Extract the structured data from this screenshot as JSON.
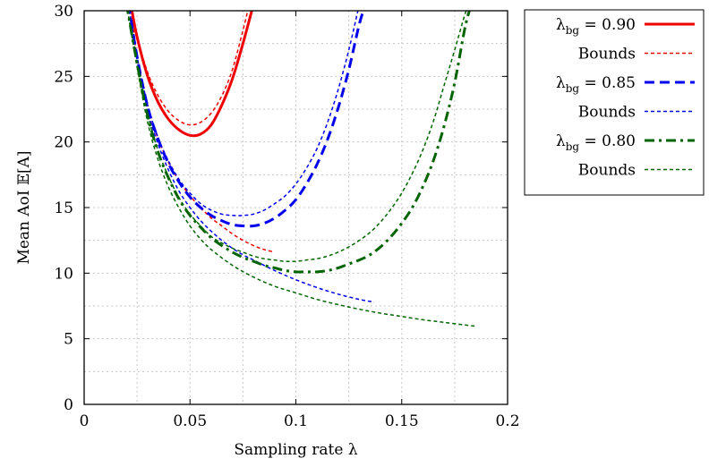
{
  "chart_data": {
    "type": "line",
    "xlabel": "Sampling rate λ",
    "ylabel": "Mean AoI 𝔼[A]",
    "xlim": [
      0,
      0.2
    ],
    "ylim": [
      0,
      30
    ],
    "xticks": [
      "0",
      "0.05",
      "0.1",
      "0.15",
      "0.2"
    ],
    "yticks": [
      "0",
      "5",
      "10",
      "15",
      "20",
      "25",
      "30"
    ],
    "grid": true,
    "legend_position": "outside-right",
    "series": [
      {
        "name": "λbg = 0.90",
        "legend": {
          "prefix": "λ",
          "sub": "bg",
          "suffix": " = 0.90"
        },
        "color": "#ee0000",
        "style": "solid",
        "x": [
          0.022,
          0.025,
          0.03,
          0.035,
          0.04,
          0.045,
          0.05,
          0.055,
          0.06,
          0.065,
          0.07,
          0.075,
          0.08
        ],
        "y": [
          30.5,
          28.0,
          25.0,
          23.0,
          21.7,
          20.9,
          20.5,
          20.6,
          21.3,
          22.8,
          24.8,
          27.5,
          30.5
        ]
      },
      {
        "name": "Bounds",
        "legend": {
          "prefix": "",
          "sub": "",
          "suffix": "Bounds"
        },
        "color": "#ee0000",
        "style": "dashed-fine",
        "x": [
          0.022,
          0.025,
          0.03,
          0.035,
          0.04,
          0.045,
          0.05,
          0.055,
          0.06,
          0.065,
          0.07,
          0.075,
          0.078
        ],
        "y": [
          30.5,
          28.0,
          25.3,
          23.5,
          22.3,
          21.6,
          21.3,
          21.5,
          22.2,
          23.5,
          25.5,
          28.5,
          30.5
        ]
      },
      {
        "name": "Bounds (lower)",
        "color": "#ee0000",
        "style": "dashed-fine",
        "x": [
          0.022,
          0.025,
          0.03,
          0.035,
          0.04,
          0.045,
          0.05,
          0.055,
          0.06,
          0.065,
          0.07,
          0.075,
          0.08,
          0.085,
          0.09
        ],
        "y": [
          30.5,
          26.5,
          22.8,
          20.2,
          18.4,
          17.0,
          15.9,
          15.0,
          14.2,
          13.6,
          13.0,
          12.5,
          12.1,
          11.8,
          11.6
        ]
      },
      {
        "name": "λbg = 0.85",
        "legend": {
          "prefix": "λ",
          "sub": "bg",
          "suffix": " = 0.85"
        },
        "color": "#0000ee",
        "style": "dashed",
        "x": [
          0.021,
          0.025,
          0.03,
          0.035,
          0.04,
          0.045,
          0.05,
          0.055,
          0.06,
          0.065,
          0.07,
          0.075,
          0.08,
          0.085,
          0.09,
          0.095,
          0.1,
          0.105,
          0.11,
          0.115,
          0.12,
          0.125,
          0.13,
          0.133
        ],
        "y": [
          30.5,
          26.5,
          22.7,
          20.2,
          18.3,
          16.9,
          15.8,
          15.0,
          14.4,
          14.0,
          13.7,
          13.6,
          13.6,
          13.8,
          14.2,
          14.8,
          15.6,
          16.8,
          18.3,
          20.2,
          22.6,
          25.5,
          29.0,
          30.5
        ]
      },
      {
        "name": "Bounds",
        "legend": {
          "prefix": "",
          "sub": "",
          "suffix": "Bounds"
        },
        "color": "#0000ee",
        "style": "dashed-fine",
        "x": [
          0.021,
          0.025,
          0.03,
          0.035,
          0.04,
          0.045,
          0.05,
          0.055,
          0.06,
          0.065,
          0.07,
          0.075,
          0.08,
          0.085,
          0.09,
          0.095,
          0.1,
          0.105,
          0.11,
          0.115,
          0.12,
          0.125,
          0.13
        ],
        "y": [
          30.5,
          26.5,
          22.8,
          20.3,
          18.5,
          17.1,
          16.1,
          15.3,
          14.8,
          14.5,
          14.4,
          14.4,
          14.5,
          14.8,
          15.3,
          15.9,
          16.8,
          18.0,
          19.5,
          21.5,
          24.0,
          27.0,
          30.5
        ]
      },
      {
        "name": "Bounds (lower)",
        "color": "#0000ee",
        "style": "dashed-fine",
        "x": [
          0.021,
          0.025,
          0.03,
          0.035,
          0.04,
          0.045,
          0.05,
          0.055,
          0.06,
          0.065,
          0.07,
          0.075,
          0.08,
          0.09,
          0.1,
          0.11,
          0.12,
          0.13,
          0.137
        ],
        "y": [
          30.5,
          26.3,
          22.4,
          19.8,
          17.8,
          16.2,
          15.0,
          14.0,
          13.2,
          12.5,
          11.9,
          11.4,
          11.0,
          10.2,
          9.5,
          8.9,
          8.4,
          8.0,
          7.8
        ]
      },
      {
        "name": "λbg = 0.80",
        "legend": {
          "prefix": "λ",
          "sub": "bg",
          "suffix": " = 0.80"
        },
        "color": "#006400",
        "style": "dashdot",
        "x": [
          0.02,
          0.025,
          0.03,
          0.035,
          0.04,
          0.045,
          0.05,
          0.055,
          0.06,
          0.065,
          0.07,
          0.075,
          0.08,
          0.085,
          0.09,
          0.095,
          0.1,
          0.105,
          0.11,
          0.115,
          0.12,
          0.125,
          0.13,
          0.135,
          0.14,
          0.145,
          0.15,
          0.155,
          0.16,
          0.165,
          0.17,
          0.175,
          0.18,
          0.183
        ],
        "y": [
          30.5,
          26.0,
          22.0,
          19.2,
          17.2,
          15.6,
          14.4,
          13.5,
          12.7,
          12.1,
          11.6,
          11.2,
          10.9,
          10.6,
          10.4,
          10.2,
          10.1,
          10.1,
          10.1,
          10.2,
          10.4,
          10.7,
          11.0,
          11.4,
          12.0,
          12.8,
          13.8,
          15.0,
          16.6,
          18.6,
          21.2,
          24.5,
          28.8,
          30.5
        ]
      },
      {
        "name": "Bounds",
        "legend": {
          "prefix": "",
          "sub": "",
          "suffix": "Bounds"
        },
        "color": "#006400",
        "style": "dashed-fine",
        "x": [
          0.02,
          0.025,
          0.03,
          0.035,
          0.04,
          0.045,
          0.05,
          0.055,
          0.06,
          0.065,
          0.07,
          0.075,
          0.08,
          0.085,
          0.09,
          0.095,
          0.1,
          0.105,
          0.11,
          0.115,
          0.12,
          0.125,
          0.13,
          0.135,
          0.14,
          0.145,
          0.15,
          0.155,
          0.16,
          0.165,
          0.17,
          0.175,
          0.18,
          0.182
        ],
        "y": [
          30.5,
          26.0,
          22.1,
          19.3,
          17.3,
          15.7,
          14.5,
          13.6,
          12.8,
          12.3,
          11.9,
          11.6,
          11.3,
          11.1,
          11.0,
          10.9,
          10.9,
          11.0,
          11.1,
          11.3,
          11.6,
          12.0,
          12.5,
          13.1,
          13.9,
          14.9,
          16.1,
          17.6,
          19.4,
          21.6,
          24.3,
          27.0,
          29.8,
          30.5
        ]
      },
      {
        "name": "Bounds (lower)",
        "color": "#006400",
        "style": "dashed-fine",
        "x": [
          0.02,
          0.025,
          0.03,
          0.035,
          0.04,
          0.045,
          0.05,
          0.055,
          0.06,
          0.07,
          0.08,
          0.09,
          0.1,
          0.11,
          0.12,
          0.13,
          0.14,
          0.15,
          0.16,
          0.17,
          0.18,
          0.185
        ],
        "y": [
          30.5,
          25.7,
          21.5,
          18.6,
          16.5,
          14.9,
          13.6,
          12.6,
          11.8,
          10.6,
          9.7,
          9.0,
          8.5,
          8.0,
          7.6,
          7.25,
          6.95,
          6.7,
          6.45,
          6.25,
          6.05,
          5.95
        ]
      }
    ],
    "legend_order": [
      0,
      1,
      3,
      4,
      6,
      7
    ]
  }
}
